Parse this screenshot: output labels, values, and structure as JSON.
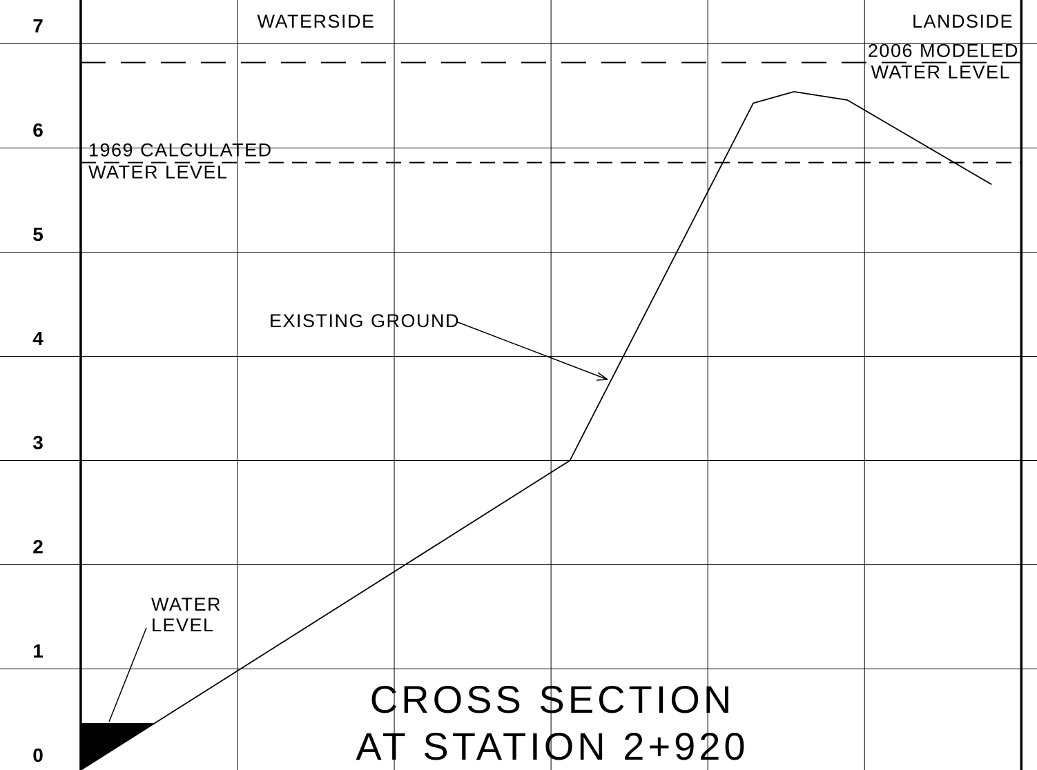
{
  "chart_data": {
    "type": "line",
    "title": [
      "CROSS SECTION",
      "AT STATION 2+920"
    ],
    "annotations": [
      "WATERSIDE",
      "LANDSIDE"
    ],
    "x": [
      0,
      3.12,
      4.29,
      4.55,
      4.89,
      5.81
    ],
    "series": [
      {
        "name": "EXISTING GROUND",
        "color": "#000000",
        "values": [
          0.03,
          3.0,
          6.43,
          6.54,
          6.46,
          5.65
        ]
      }
    ],
    "reference_levels": [
      {
        "label": [
          "1969 CALCULATED",
          "WATER LEVEL"
        ],
        "value": 5.86
      },
      {
        "label": [
          "2006 MODELED",
          "WATER LEVEL"
        ],
        "value": 6.82
      }
    ],
    "water_level": {
      "label": [
        "WATER",
        "LEVEL"
      ],
      "value": 0.48
    },
    "xlim": [
      -0.515,
      6.1
    ],
    "xticks": [
      0,
      1,
      2,
      3,
      4,
      5,
      6
    ],
    "ylim": [
      0.03,
      7.42
    ],
    "yticks": [
      0,
      1,
      2,
      3,
      4,
      5,
      6,
      7
    ],
    "grid": true
  }
}
